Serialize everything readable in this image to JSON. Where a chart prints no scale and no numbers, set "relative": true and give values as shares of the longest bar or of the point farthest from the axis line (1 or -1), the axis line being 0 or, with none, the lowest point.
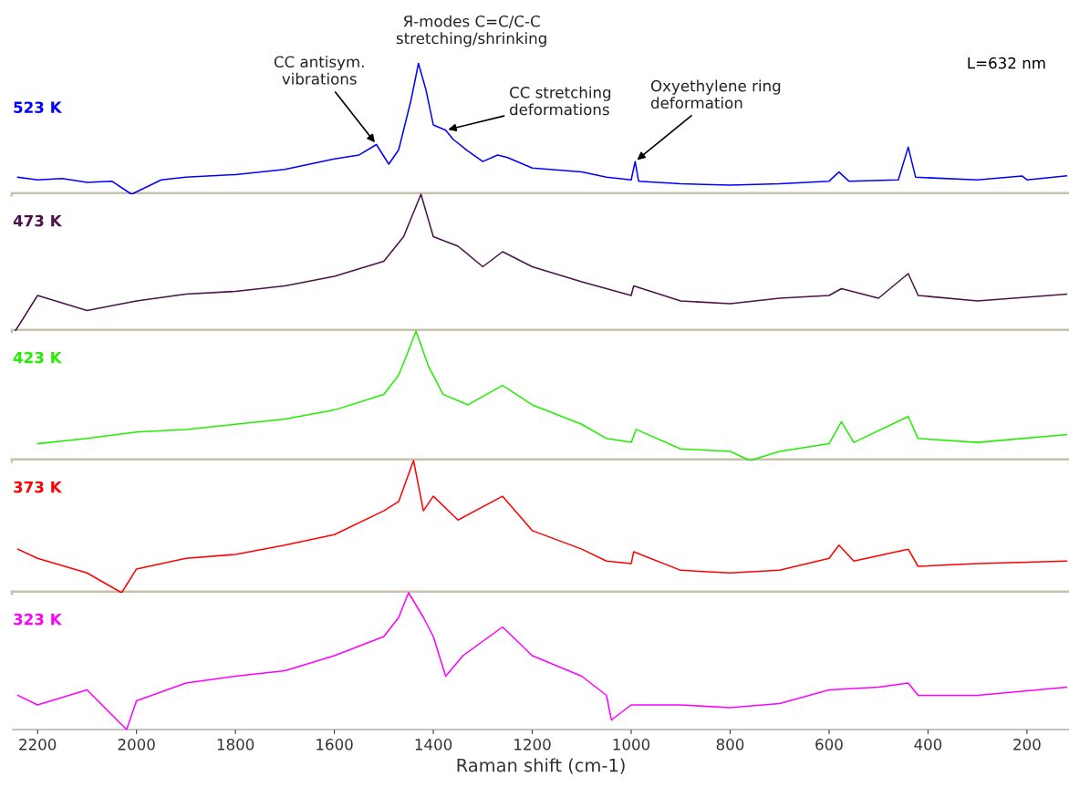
{
  "chart_data": [
    {
      "type": "line",
      "relative": true,
      "tick_labels": false,
      "xlim": [
        2250,
        115
      ],
      "x": [
        2240,
        2200,
        2150,
        2100,
        2050,
        2010,
        1950,
        1900,
        1800,
        1700,
        1600,
        1550,
        1515,
        1490,
        1470,
        1445,
        1430,
        1415,
        1400,
        1375,
        1360,
        1330,
        1300,
        1270,
        1250,
        1200,
        1100,
        1050,
        1000,
        992,
        985,
        900,
        800,
        700,
        600,
        580,
        560,
        460,
        440,
        425,
        300,
        210,
        200,
        120
      ],
      "series": [
        {
          "name": "523 K",
          "color": "#0000ff",
          "values": [
            0.13,
            0.11,
            0.12,
            0.09,
            0.1,
            0,
            0.11,
            0.13,
            0.15,
            0.19,
            0.27,
            0.3,
            0.38,
            0.23,
            0.34,
            0.72,
            1,
            0.8,
            0.53,
            0.49,
            0.42,
            0.33,
            0.25,
            0.3,
            0.28,
            0.2,
            0.17,
            0.13,
            0.11,
            0.25,
            0.1,
            0.08,
            0.07,
            0.08,
            0.1,
            0.17,
            0.1,
            0.11,
            0.36,
            0.13,
            0.11,
            0.14,
            0.11,
            0.14
          ]
        }
      ],
      "annotations": [
        {
          "text": "CC antisym.\nvibrations",
          "x": 1515,
          "y": 0.38
        },
        {
          "text": "Я-modes C=C/C-C\nstretching/shrinking",
          "x": 1430,
          "y": 1
        },
        {
          "text": "CC stretching\ndeformations",
          "x": 1375,
          "y": 0.49
        },
        {
          "text": "Oxyethylene ring\ndeformation",
          "x": 992,
          "y": 0.25
        },
        "L=632 nm"
      ]
    },
    {
      "type": "line",
      "relative": true,
      "tick_labels": false,
      "xlim": [
        2250,
        115
      ],
      "x": [
        2245,
        2200,
        2100,
        2000,
        1900,
        1800,
        1700,
        1600,
        1500,
        1460,
        1425,
        1400,
        1350,
        1300,
        1260,
        1200,
        1100,
        1000,
        995,
        900,
        800,
        700,
        600,
        575,
        500,
        440,
        420,
        300,
        120
      ],
      "series": [
        {
          "name": "473 K",
          "color": "#4a1248",
          "values": [
            0,
            0.26,
            0.15,
            0.22,
            0.27,
            0.29,
            0.33,
            0.4,
            0.51,
            0.69,
            1,
            0.69,
            0.62,
            0.47,
            0.58,
            0.47,
            0.36,
            0.26,
            0.33,
            0.22,
            0.2,
            0.24,
            0.26,
            0.31,
            0.24,
            0.42,
            0.26,
            0.22,
            0.27
          ]
        }
      ]
    },
    {
      "type": "line",
      "relative": true,
      "tick_labels": false,
      "xlim": [
        2250,
        115
      ],
      "x": [
        2200,
        2100,
        2000,
        1900,
        1800,
        1700,
        1600,
        1500,
        1470,
        1450,
        1435,
        1410,
        1380,
        1330,
        1260,
        1200,
        1100,
        1050,
        1000,
        990,
        900,
        800,
        760,
        700,
        600,
        575,
        550,
        440,
        420,
        300,
        120
      ],
      "series": [
        {
          "name": "423 K",
          "color": "#22ee00",
          "values": [
            0.13,
            0.17,
            0.22,
            0.24,
            0.28,
            0.32,
            0.39,
            0.51,
            0.66,
            0.85,
            1,
            0.73,
            0.51,
            0.43,
            0.58,
            0.43,
            0.28,
            0.17,
            0.14,
            0.24,
            0.09,
            0.07,
            0,
            0.07,
            0.13,
            0.3,
            0.14,
            0.34,
            0.17,
            0.14,
            0.2
          ]
        }
      ]
    },
    {
      "type": "line",
      "relative": true,
      "tick_labels": false,
      "xlim": [
        2250,
        115
      ],
      "x": [
        2240,
        2200,
        2100,
        2030,
        2000,
        1900,
        1800,
        1700,
        1600,
        1500,
        1470,
        1440,
        1420,
        1400,
        1350,
        1260,
        1200,
        1100,
        1050,
        1000,
        995,
        900,
        800,
        700,
        600,
        580,
        550,
        440,
        420,
        300,
        120
      ],
      "series": [
        {
          "name": "373 K",
          "color": "#ff0000",
          "values": [
            0.33,
            0.26,
            0.15,
            0,
            0.18,
            0.26,
            0.29,
            0.36,
            0.44,
            0.62,
            0.69,
            1,
            0.62,
            0.73,
            0.55,
            0.73,
            0.47,
            0.33,
            0.24,
            0.22,
            0.31,
            0.17,
            0.15,
            0.17,
            0.26,
            0.36,
            0.24,
            0.33,
            0.2,
            0.22,
            0.24
          ]
        }
      ]
    },
    {
      "type": "line",
      "relative": true,
      "tick_labels": "x",
      "xlim": [
        2250,
        115
      ],
      "xticks": [
        2200,
        2000,
        1800,
        1600,
        1400,
        1200,
        1000,
        800,
        600,
        400,
        200
      ],
      "xlabel": "Raman shift (cm-1)",
      "x": [
        2240,
        2200,
        2100,
        2020,
        2000,
        1900,
        1800,
        1700,
        1600,
        1500,
        1470,
        1450,
        1420,
        1400,
        1375,
        1340,
        1260,
        1200,
        1100,
        1050,
        1040,
        1000,
        900,
        800,
        700,
        600,
        500,
        440,
        420,
        300,
        120
      ],
      "series": [
        {
          "name": "323 K",
          "color": "#ff00ff",
          "values": [
            0.25,
            0.18,
            0.29,
            0,
            0.21,
            0.34,
            0.39,
            0.43,
            0.54,
            0.68,
            0.82,
            1,
            0.82,
            0.68,
            0.39,
            0.54,
            0.75,
            0.54,
            0.39,
            0.25,
            0.07,
            0.18,
            0.18,
            0.16,
            0.19,
            0.29,
            0.31,
            0.34,
            0.25,
            0.25,
            0.31
          ]
        }
      ]
    }
  ]
}
